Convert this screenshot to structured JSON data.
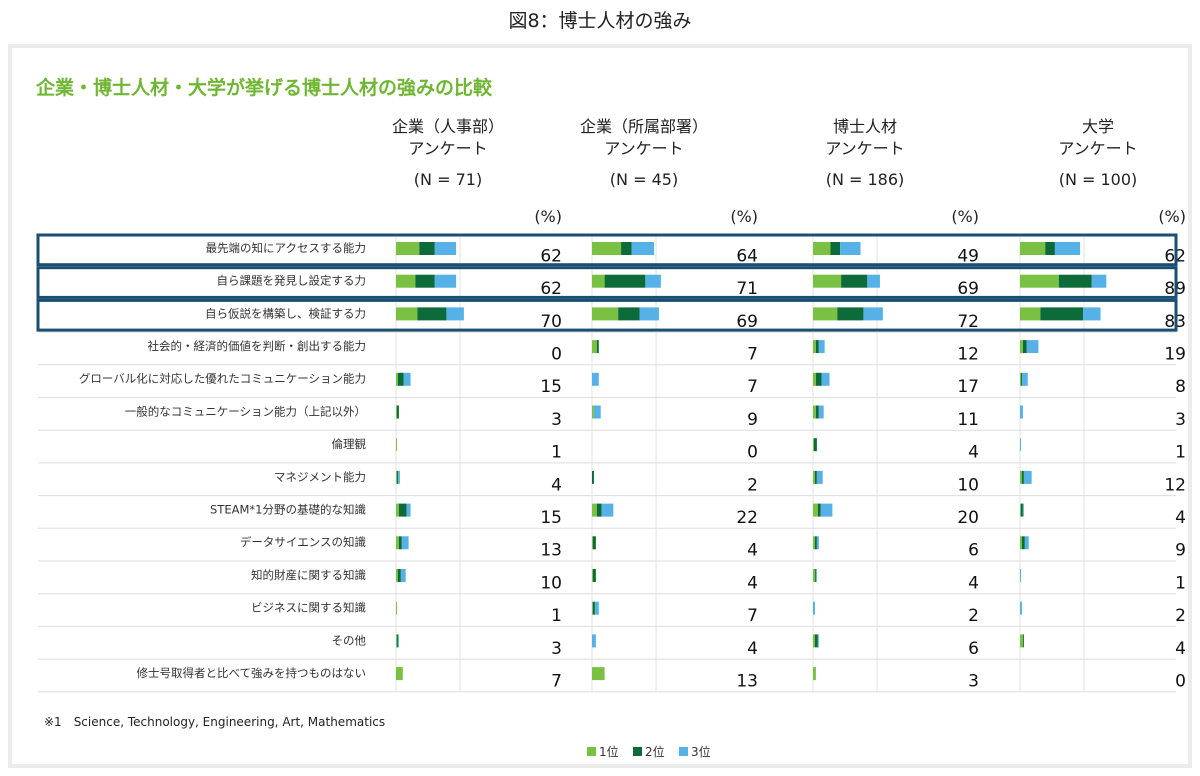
{
  "figure_title": "図8：博士人材の強み",
  "chart_data": {
    "type": "bar",
    "stacked": true,
    "orientation": "horizontal",
    "title": "企業・博士人材・大学が挙げる博士人材の強みの比較",
    "percent_label": "(%)",
    "xlim": [
      0,
      100
    ],
    "grid": true,
    "legend_position": "bottom",
    "footnote": "※1　Science, Technology, Engineering, Art, Mathematics",
    "colors": {
      "rank1": "#7ac143",
      "rank2": "#0d6b3a",
      "rank3": "#55b1e6",
      "highlight": "#1b4f72"
    },
    "legend": [
      "1位",
      "2位",
      "3位"
    ],
    "highlighted_rows": [
      0,
      1,
      2
    ],
    "categories": [
      "最先端の知にアクセスする能力",
      "自ら課題を発見し設定する力",
      "自ら仮説を構築し、検証する力",
      "社会的・経済的価値を判断・創出する能力",
      "グローバル化に対応した優れたコミュニケーション能力",
      "一般的なコミュニケーション能力（上記以外）",
      "倫理観",
      "マネジメント能力",
      "STEAM*1分野の基礎的な知識",
      "データサイエンスの知識",
      "知的財産に関する知識",
      "ビジネスに関する知識",
      "その他",
      "修士号取得者と比べて強みを持つものはない"
    ],
    "groups": [
      {
        "title_lines": [
          "企業（人事部）",
          "アンケート",
          "(N = 71)"
        ],
        "totals": [
          62,
          62,
          70,
          0,
          15,
          3,
          1,
          4,
          15,
          13,
          10,
          1,
          3,
          7
        ],
        "rank1": [
          24,
          20,
          22,
          0,
          2,
          1,
          1,
          1,
          3,
          3,
          2,
          1,
          1,
          7
        ],
        "rank2": [
          16,
          20,
          30,
          0,
          6,
          2,
          0,
          1,
          8,
          3,
          3,
          0,
          1,
          0
        ],
        "rank3": [
          22,
          22,
          18,
          0,
          7,
          0,
          0,
          2,
          4,
          7,
          5,
          0,
          1,
          0
        ]
      },
      {
        "title_lines": [
          "企業（所属部署）",
          "アンケート",
          "(N = 45)"
        ],
        "totals": [
          64,
          71,
          69,
          7,
          7,
          9,
          0,
          2,
          22,
          4,
          4,
          7,
          4,
          13
        ],
        "rank1": [
          30,
          13,
          27,
          5,
          0,
          2,
          0,
          0,
          5,
          1,
          1,
          1,
          0,
          13
        ],
        "rank2": [
          11,
          42,
          22,
          2,
          0,
          0,
          0,
          2,
          5,
          3,
          3,
          2,
          0,
          0
        ],
        "rank3": [
          23,
          16,
          20,
          0,
          7,
          7,
          0,
          0,
          12,
          0,
          0,
          4,
          4,
          0
        ]
      },
      {
        "title_lines": [
          "博士人材",
          "アンケート",
          "(N = 186)"
        ],
        "totals": [
          49,
          69,
          72,
          12,
          17,
          11,
          4,
          10,
          20,
          6,
          4,
          2,
          6,
          3
        ],
        "rank1": [
          18,
          29,
          25,
          3,
          3,
          3,
          1,
          2,
          5,
          2,
          2,
          0,
          2,
          3
        ],
        "rank2": [
          10,
          27,
          27,
          3,
          6,
          3,
          3,
          2,
          3,
          2,
          1,
          0,
          3,
          0
        ],
        "rank3": [
          21,
          13,
          20,
          6,
          8,
          5,
          0,
          6,
          12,
          2,
          1,
          2,
          1,
          0
        ]
      },
      {
        "title_lines": [
          "大学",
          "アンケート",
          "(N = 100)"
        ],
        "totals": [
          62,
          89,
          83,
          19,
          8,
          3,
          1,
          12,
          4,
          9,
          1,
          2,
          4,
          0
        ],
        "rank1": [
          26,
          40,
          21,
          3,
          1,
          0,
          0,
          2,
          1,
          2,
          0,
          0,
          3,
          0
        ],
        "rank2": [
          10,
          34,
          44,
          4,
          1,
          0,
          0,
          2,
          2,
          3,
          0,
          0,
          1,
          0
        ],
        "rank3": [
          26,
          15,
          18,
          12,
          6,
          3,
          1,
          8,
          1,
          4,
          1,
          2,
          0,
          0
        ]
      }
    ]
  }
}
